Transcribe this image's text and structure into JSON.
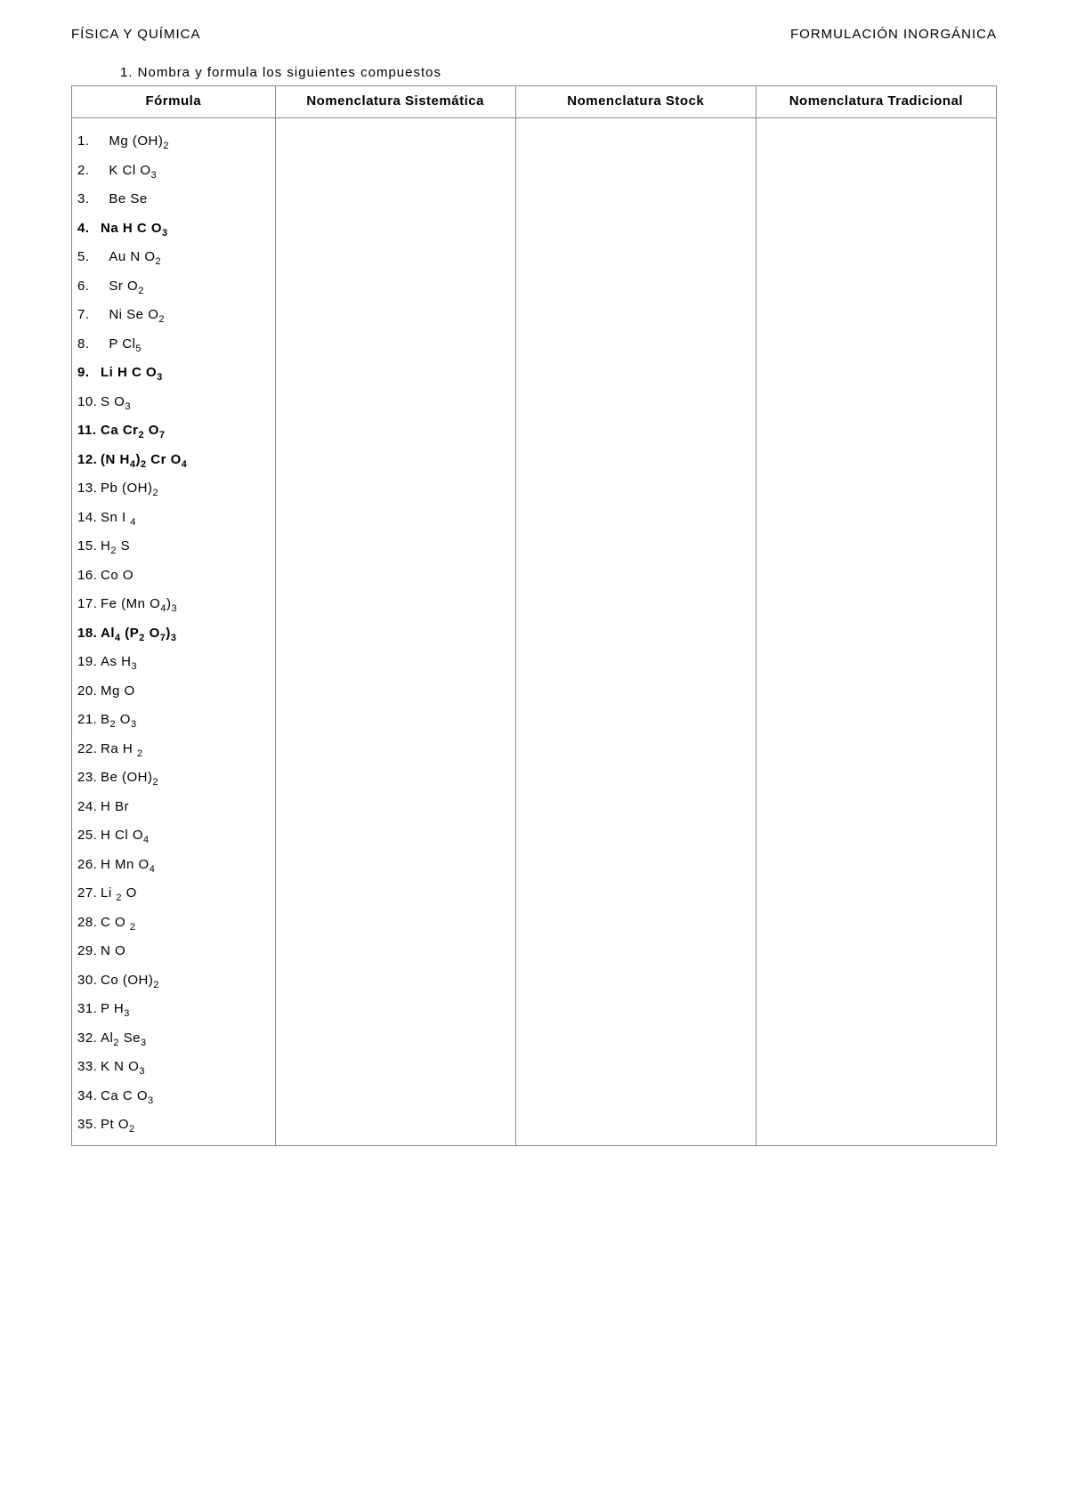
{
  "header": {
    "left": "FÍSICA Y QUÍMICA",
    "right": "FORMULACIÓN INORGÁNICA"
  },
  "instruction": "1. Nombra y formula los siguientes compuestos",
  "table": {
    "columns": [
      "Fórmula",
      "Nomenclatura Sistemática",
      "Nomenclatura Stock",
      "Nomenclatura Tradicional"
    ],
    "rows": [
      {
        "n": "1.",
        "formula": "Mg (OH)<sub>2</sub>",
        "bold": false,
        "pad": true
      },
      {
        "n": "2.",
        "formula": "K Cl O<sub>3</sub>",
        "bold": false,
        "pad": true
      },
      {
        "n": "3.",
        "formula": "Be Se",
        "bold": false,
        "pad": true
      },
      {
        "n": "4.",
        "formula": "Na H C O<sub>3</sub>",
        "bold": true,
        "pad": false
      },
      {
        "n": "5.",
        "formula": "Au N O<sub>2</sub>",
        "bold": false,
        "pad": true
      },
      {
        "n": "6.",
        "formula": "Sr O<sub>2</sub>",
        "bold": false,
        "pad": true
      },
      {
        "n": "7.",
        "formula": "Ni Se O<sub>2</sub>",
        "bold": false,
        "pad": true
      },
      {
        "n": "8.",
        "formula": "P Cl<sub>5</sub>",
        "bold": false,
        "pad": true
      },
      {
        "n": "9.",
        "formula": "Li H C O<sub>3</sub>",
        "bold": true,
        "pad": false
      },
      {
        "n": "10.",
        "formula": "S O<sub>3</sub>",
        "bold": false,
        "pad": false
      },
      {
        "n": "11.",
        "formula": " Ca Cr<sub>2</sub> O<sub>7</sub>",
        "bold": true,
        "pad": false
      },
      {
        "n": "12.",
        "formula": " (N H<sub>4</sub>)<sub>2</sub> Cr O<sub>4</sub>",
        "bold": true,
        "pad": false
      },
      {
        "n": "13.",
        "formula": "Pb (OH)<sub>2</sub>",
        "bold": false,
        "pad": false
      },
      {
        "n": "14.",
        "formula": "Sn I <sub>4</sub>",
        "bold": false,
        "pad": false
      },
      {
        "n": "15.",
        "formula": "H<sub>2</sub> S",
        "bold": false,
        "pad": false
      },
      {
        "n": "16.",
        "formula": "Co O",
        "bold": false,
        "pad": false
      },
      {
        "n": "17.",
        "formula": "Fe (Mn O<sub>4</sub>)<sub>3</sub>",
        "bold": false,
        "pad": false
      },
      {
        "n": "18.",
        "formula": " Al<sub>4</sub> (P<sub>2</sub> O<sub>7</sub>)<sub>3</sub>",
        "bold": true,
        "pad": false
      },
      {
        "n": "19.",
        "formula": "As H<sub>3</sub>",
        "bold": false,
        "pad": false
      },
      {
        "n": "20.",
        "formula": "Mg O",
        "bold": false,
        "pad": false
      },
      {
        "n": "21.",
        "formula": "B<sub>2</sub> O<sub>3</sub>",
        "bold": false,
        "pad": false
      },
      {
        "n": "22.",
        "formula": "Ra H <sub>2</sub>",
        "bold": false,
        "pad": false
      },
      {
        "n": "23.",
        "formula": "Be (OH)<sub>2</sub>",
        "bold": false,
        "pad": false
      },
      {
        "n": "24.",
        "formula": "H Br",
        "bold": false,
        "pad": false
      },
      {
        "n": "25.",
        "formula": "H Cl O<sub>4</sub>",
        "bold": false,
        "pad": false
      },
      {
        "n": "26.",
        "formula": "H Mn O<sub>4</sub>",
        "bold": false,
        "pad": false
      },
      {
        "n": "27.",
        "formula": "Li <sub>2</sub> O",
        "bold": false,
        "pad": false
      },
      {
        "n": "28.",
        "formula": "C O <sub>2</sub>",
        "bold": false,
        "pad": false
      },
      {
        "n": "29.",
        "formula": "N O",
        "bold": false,
        "pad": false
      },
      {
        "n": "30.",
        "formula": "Co (OH)<sub>2</sub>",
        "bold": false,
        "pad": false
      },
      {
        "n": "31.",
        "formula": "P H<sub>3</sub>",
        "bold": false,
        "pad": false
      },
      {
        "n": "32.",
        "formula": "Al<sub>2</sub> Se<sub>3</sub>",
        "bold": false,
        "pad": false
      },
      {
        "n": "33.",
        "formula": "K N O<sub>3</sub>",
        "bold": false,
        "pad": false
      },
      {
        "n": "34.",
        "formula": "Ca C O<sub>3</sub>",
        "bold": false,
        "pad": false
      },
      {
        "n": "35.",
        "formula": "Pt O<sub>2</sub>",
        "bold": false,
        "pad": false
      }
    ]
  }
}
